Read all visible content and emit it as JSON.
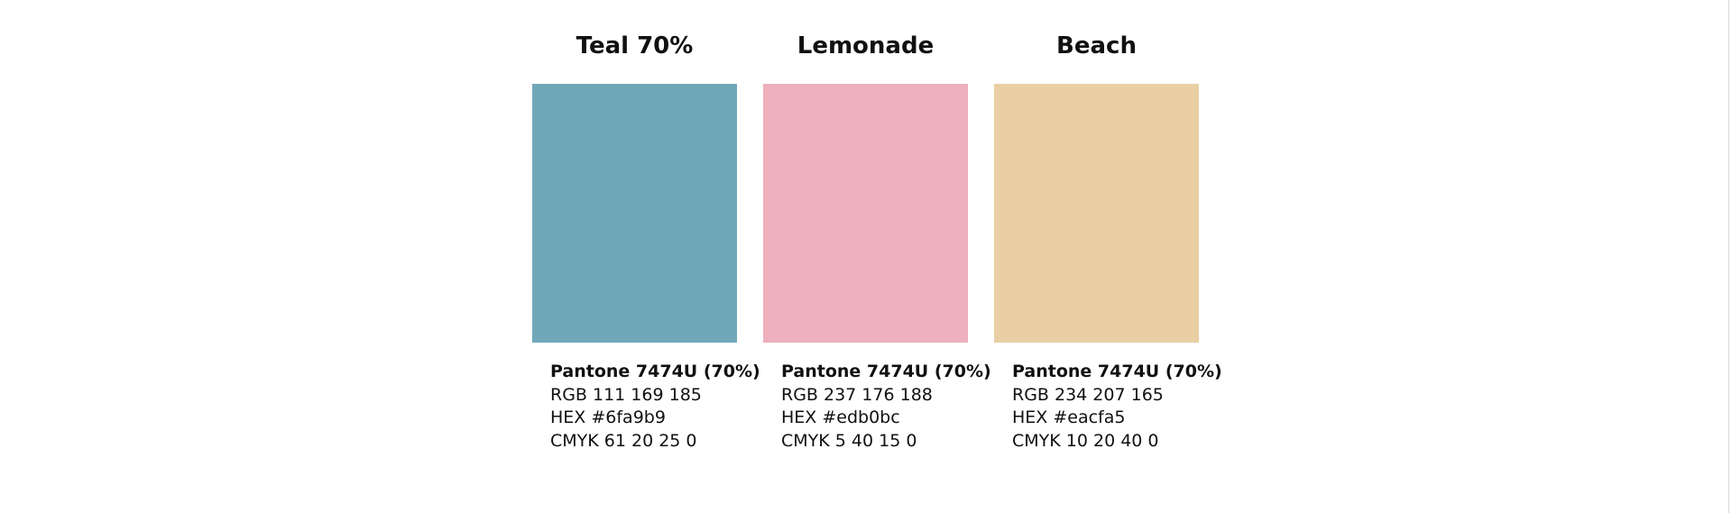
{
  "swatches": [
    {
      "name": "Teal 70%",
      "color": "#6fa9b9",
      "pantone": "Pantone 7474U (70%)",
      "rgb": "RGB 111 169 185",
      "hex": "HEX #6fa9b9",
      "cmyk": "CMYK 61 20 25 0"
    },
    {
      "name": "Lemonade",
      "color": "#edb0bc",
      "pantone": "Pantone 7474U (70%)",
      "rgb": "RGB 237 176 188",
      "hex": "HEX #edb0bc",
      "cmyk": "CMYK 5 40 15 0"
    },
    {
      "name": "Beach",
      "color": "#eacfa5",
      "pantone": "Pantone 7474U (70%)",
      "rgb": "RGB 234 207 165",
      "hex": "HEX #eacfa5",
      "cmyk": "CMYK 10 20 40 0"
    }
  ]
}
